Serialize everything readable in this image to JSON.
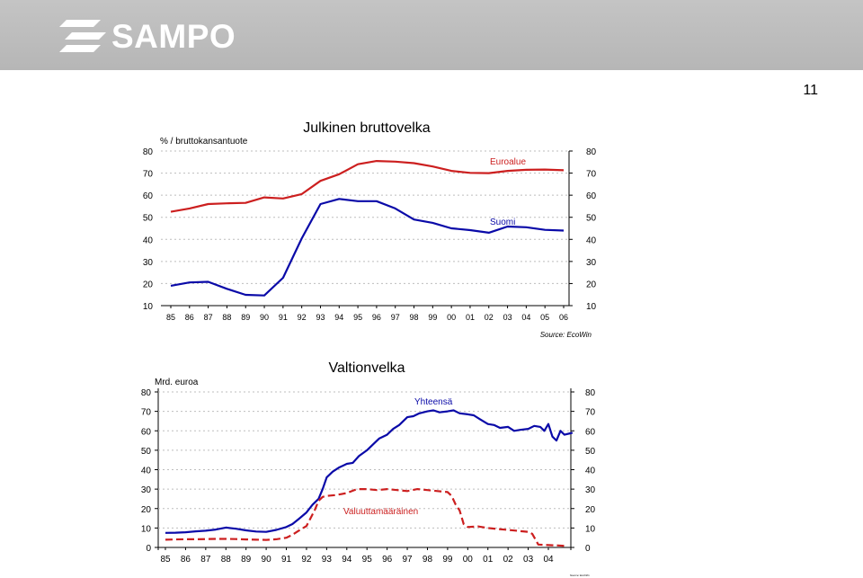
{
  "brand": {
    "name": "SAMPO",
    "header_color": "#bcbcbc"
  },
  "page_number": "11",
  "chart_data": [
    {
      "type": "line",
      "title": "Julkinen bruttovelka",
      "unit_label": "% / bruttokansantuote",
      "source": "Source: EcoWin",
      "categories": [
        "85",
        "86",
        "87",
        "88",
        "89",
        "90",
        "91",
        "92",
        "93",
        "94",
        "95",
        "96",
        "97",
        "98",
        "99",
        "00",
        "01",
        "02",
        "03",
        "04",
        "05",
        "06"
      ],
      "ylim": [
        10,
        80
      ],
      "yticks": [
        10,
        20,
        30,
        40,
        50,
        60,
        70,
        80
      ],
      "series": [
        {
          "name": "Euroalue",
          "color": "#cc1f1f",
          "dashed": false,
          "values": [
            52.5,
            54,
            56,
            56.3,
            56.5,
            59,
            58.5,
            60.5,
            66.5,
            69.5,
            74,
            75.5,
            75.2,
            74.5,
            73,
            71,
            70.1,
            70,
            71,
            71.5,
            71.6,
            71.3
          ]
        },
        {
          "name": "Suomi",
          "color": "#0a0aa8",
          "dashed": false,
          "values": [
            19,
            20.5,
            20.8,
            17.6,
            14.9,
            14.6,
            22.6,
            40.5,
            56,
            58.3,
            57.3,
            57.3,
            54,
            49,
            47.5,
            45,
            44.2,
            43,
            45.8,
            45.5,
            44.3,
            44
          ]
        }
      ]
    },
    {
      "type": "line",
      "title": "Valtionvelka",
      "unit_label": "Mrd. euroa",
      "source": "Source: EcoWin",
      "categories": [
        "85",
        "86",
        "87",
        "88",
        "89",
        "90",
        "91",
        "92",
        "93",
        "94",
        "95",
        "96",
        "97",
        "98",
        "99",
        "00",
        "01",
        "02",
        "03",
        "04"
      ],
      "ylim": [
        0,
        80
      ],
      "yticks": [
        0,
        10,
        20,
        30,
        40,
        50,
        60,
        70,
        80
      ],
      "series": [
        {
          "name": "Yhteensä",
          "color": "#0a0aa8",
          "dashed": false,
          "x": [
            85.0,
            85.5,
            86.0,
            86.5,
            87.0,
            87.5,
            88.0,
            88.5,
            89.0,
            89.5,
            90.0,
            90.5,
            91.0,
            91.3,
            91.6,
            92.0,
            92.3,
            92.6,
            92.8,
            93.0,
            93.3,
            93.6,
            94.0,
            94.3,
            94.6,
            95.0,
            95.3,
            95.6,
            96.0,
            96.3,
            96.6,
            97.0,
            97.3,
            97.6,
            98.0,
            98.3,
            98.6,
            99.0,
            99.3,
            99.6,
            100.0,
            100.3,
            100.6,
            101.0,
            101.3,
            101.6,
            102.0,
            102.3,
            102.6,
            103.0,
            103.3,
            103.6,
            103.8,
            104.0,
            104.2,
            104.4,
            104.6,
            104.8,
            105.0,
            105.2
          ],
          "values": [
            7.5,
            7.6,
            7.8,
            8.3,
            8.6,
            9.2,
            10.2,
            9.6,
            8.8,
            8.2,
            8.0,
            9.0,
            10.5,
            12.0,
            14.5,
            18.0,
            22.0,
            25.0,
            30.0,
            36.0,
            39.0,
            41.0,
            43.0,
            43.5,
            47.0,
            50.0,
            53.0,
            56.0,
            58.0,
            61.0,
            63.0,
            67.0,
            67.5,
            69.0,
            70.0,
            70.5,
            69.5,
            70.0,
            70.5,
            69.0,
            68.5,
            68.0,
            66.0,
            63.5,
            63.0,
            61.5,
            62.0,
            60.0,
            60.5,
            61.0,
            62.5,
            62.0,
            60.0,
            63.5,
            57.0,
            55.0,
            60.0,
            58.0,
            58.5,
            59.0
          ]
        },
        {
          "name": "Valuuttamääräinen",
          "color": "#cc1f1f",
          "dashed": true,
          "x": [
            85.0,
            85.5,
            86.0,
            86.5,
            87.0,
            87.5,
            88.0,
            88.5,
            89.0,
            89.5,
            90.0,
            90.5,
            91.0,
            91.3,
            91.6,
            92.0,
            92.2,
            92.4,
            92.6,
            92.8,
            93.0,
            93.5,
            94.0,
            94.5,
            95.0,
            95.5,
            96.0,
            96.5,
            97.0,
            97.5,
            98.0,
            98.5,
            99.0,
            99.2,
            99.4,
            99.6,
            99.8,
            100.0,
            100.5,
            101.0,
            101.5,
            102.0,
            102.5,
            103.0,
            103.2,
            103.5,
            104.0,
            104.5,
            104.8
          ],
          "values": [
            4.0,
            4.1,
            4.2,
            4.2,
            4.3,
            4.4,
            4.4,
            4.3,
            4.1,
            4.0,
            3.9,
            4.2,
            5.0,
            6.5,
            8.5,
            11.0,
            15.0,
            19.0,
            24.0,
            26.0,
            26.5,
            27.0,
            28.0,
            30.0,
            30.0,
            29.5,
            30.0,
            29.5,
            29.0,
            30.0,
            29.5,
            29.0,
            28.5,
            26.5,
            22.0,
            19.0,
            12.0,
            10.5,
            10.8,
            10.0,
            9.5,
            9.0,
            8.5,
            8.0,
            7.0,
            1.5,
            1.2,
            1.0,
            0.8
          ]
        }
      ]
    }
  ]
}
